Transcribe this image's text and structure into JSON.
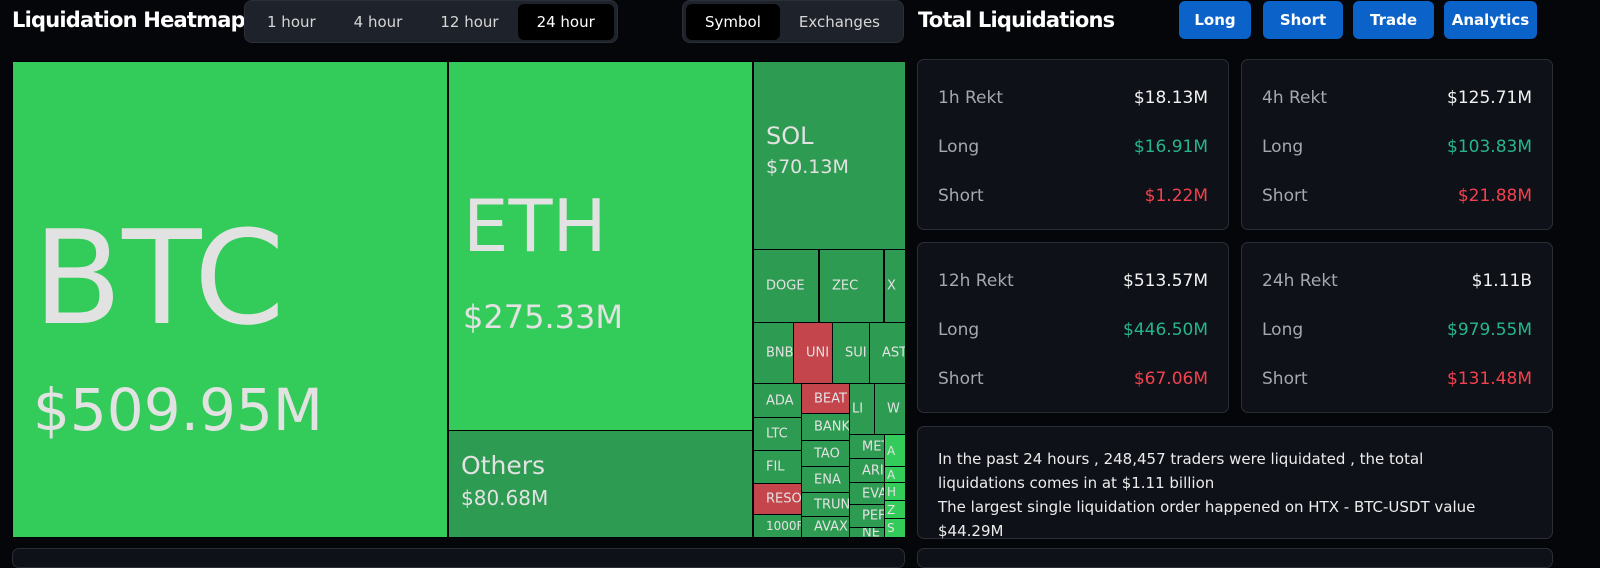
{
  "heatmap": {
    "title": "Liquidation Heatmap",
    "time_tabs": [
      {
        "label": "1 hour",
        "active": false
      },
      {
        "label": "4 hour",
        "active": false
      },
      {
        "label": "12 hour",
        "active": false
      },
      {
        "label": "24 hour",
        "active": true
      }
    ],
    "view_tabs": [
      {
        "label": "Symbol",
        "active": true
      },
      {
        "label": "Exchanges",
        "active": false
      }
    ],
    "colors": {
      "long_large": "#33cc5a",
      "long": "#2e9b52",
      "short": "#c4454b"
    },
    "cells": [
      {
        "label": "BTC",
        "value": "$509.95M",
        "color": "long_large"
      },
      {
        "label": "ETH",
        "value": "$275.33M",
        "color": "long_large"
      },
      {
        "label": "Others",
        "value": "$80.68M",
        "color": "long"
      },
      {
        "label": "SOL",
        "value": "$70.13M",
        "color": "long"
      },
      {
        "label": "DOGE",
        "color": "long"
      },
      {
        "label": "ZEC",
        "color": "long"
      },
      {
        "label": "X",
        "color": "long"
      },
      {
        "label": "BNB",
        "color": "long"
      },
      {
        "label": "UNI",
        "color": "short"
      },
      {
        "label": "SUI",
        "color": "long"
      },
      {
        "label": "AST",
        "color": "long"
      },
      {
        "label": "ADA",
        "color": "long"
      },
      {
        "label": "LTC",
        "color": "long"
      },
      {
        "label": "FIL",
        "color": "long"
      },
      {
        "label": "RESO",
        "color": "short"
      },
      {
        "label": "1000F",
        "color": "long"
      },
      {
        "label": "BEAT",
        "color": "short"
      },
      {
        "label": "BANK",
        "color": "long"
      },
      {
        "label": "TAO",
        "color": "long"
      },
      {
        "label": "ENA",
        "color": "long"
      },
      {
        "label": "TRUN",
        "color": "long"
      },
      {
        "label": "AVAX",
        "color": "long"
      },
      {
        "label": "LI",
        "color": "long"
      },
      {
        "label": "W",
        "color": "long"
      },
      {
        "label": "MET",
        "color": "long"
      },
      {
        "label": "ARI",
        "color": "long"
      },
      {
        "label": "EVA",
        "color": "long"
      },
      {
        "label": "PEF",
        "color": "long"
      },
      {
        "label": "NE",
        "color": "long"
      },
      {
        "label": "A",
        "color": "long_large"
      },
      {
        "label": "A",
        "color": "long_large"
      },
      {
        "label": "H",
        "color": "long_large"
      },
      {
        "label": "Z",
        "color": "long_large"
      },
      {
        "label": "S",
        "color": "long_large"
      }
    ]
  },
  "totals": {
    "title": "Total Liquidations",
    "buttons": [
      "Long",
      "Short",
      "Trade",
      "Analytics"
    ],
    "cards": [
      {
        "label": "1h Rekt",
        "total": "$18.13M",
        "long_label": "Long",
        "long": "$16.91M",
        "short_label": "Short",
        "short": "$1.22M"
      },
      {
        "label": "4h Rekt",
        "total": "$125.71M",
        "long_label": "Long",
        "long": "$103.83M",
        "short_label": "Short",
        "short": "$21.88M"
      },
      {
        "label": "12h Rekt",
        "total": "$513.57M",
        "long_label": "Long",
        "long": "$446.50M",
        "short_label": "Short",
        "short": "$67.06M"
      },
      {
        "label": "24h Rekt",
        "total": "$1.11B",
        "long_label": "Long",
        "long": "$979.55M",
        "short_label": "Short",
        "short": "$131.48M"
      }
    ],
    "summary_line1": "In the past 24 hours , 248,457 traders were liquidated , the total liquidations comes in at $1.11 billion",
    "summary_line2": "The largest single liquidation order happened on HTX - BTC-USDT value $44.29M"
  }
}
